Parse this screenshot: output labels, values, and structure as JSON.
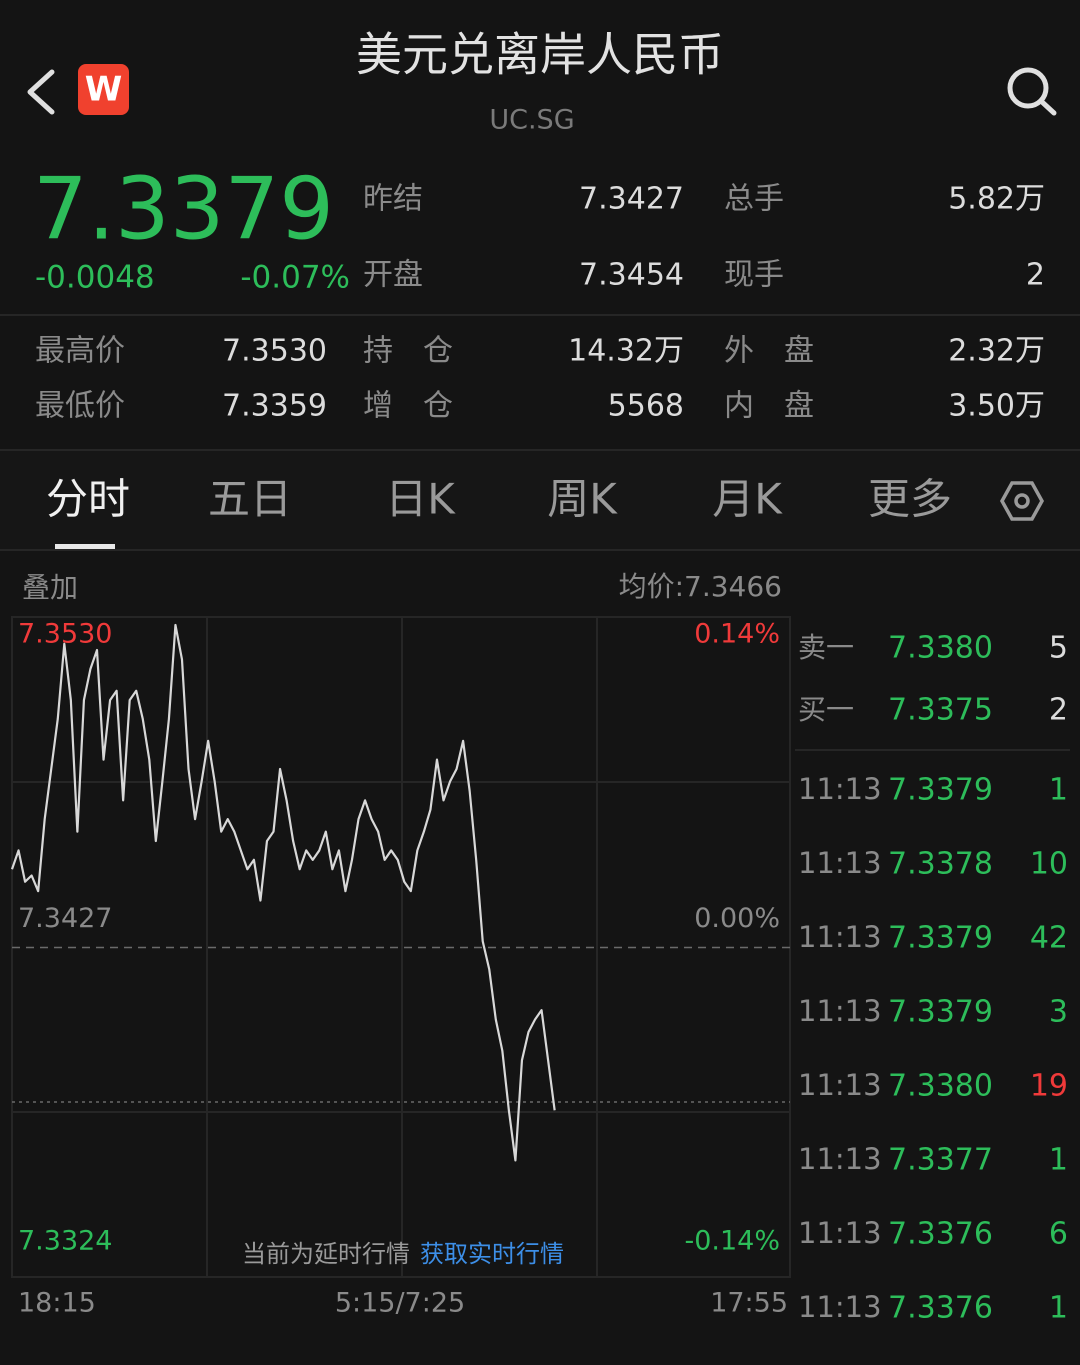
{
  "header": {
    "logo": "W",
    "title": "美元兑离岸人民币",
    "code": "UC.SG"
  },
  "quote": {
    "price": "7.3379",
    "change": "-0.0048",
    "change_pct": "-0.07%"
  },
  "stats": [
    {
      "label": "昨结",
      "value": "7.3427"
    },
    {
      "label": "总手",
      "value": "5.82万"
    },
    {
      "label": "开盘",
      "value": "7.3454"
    },
    {
      "label": "现手",
      "value": "2"
    },
    {
      "label": "最高价",
      "value": "7.3530"
    },
    {
      "label": "持　仓",
      "value": "14.32万"
    },
    {
      "label": "外　盘",
      "value": "2.32万"
    },
    {
      "label": "最低价",
      "value": "7.3359"
    },
    {
      "label": "增　仓",
      "value": "5568"
    },
    {
      "label": "内　盘",
      "value": "3.50万"
    }
  ],
  "tabs": [
    "分时",
    "五日",
    "日K",
    "周K",
    "月K",
    "更多"
  ],
  "overlay": "叠加",
  "average": "均价:7.3466",
  "notice": "当前为延时行情",
  "notice_link": "获取实时行情",
  "chart_data": {
    "type": "line",
    "color": "#d8d8d8",
    "values": [
      7.3452,
      7.3458,
      7.3448,
      7.345,
      7.3445,
      7.3468,
      7.3484,
      7.35,
      7.3524,
      7.3506,
      7.3464,
      7.3506,
      7.3516,
      7.3522,
      7.3487,
      7.3506,
      7.3509,
      7.3474,
      7.3506,
      7.3509,
      7.35,
      7.3487,
      7.3461,
      7.348,
      7.35,
      7.353,
      7.3519,
      7.3484,
      7.3468,
      7.348,
      7.3493,
      7.348,
      7.3464,
      7.3468,
      7.3464,
      7.3458,
      7.3452,
      7.3455,
      7.3442,
      7.3461,
      7.3464,
      7.3484,
      7.3474,
      7.3461,
      7.3452,
      7.3458,
      7.3455,
      7.3458,
      7.3464,
      7.3452,
      7.3458,
      7.3445,
      7.3455,
      7.3468,
      7.3474,
      7.3468,
      7.3464,
      7.3455,
      7.3458,
      7.3455,
      7.3448,
      7.3445,
      7.3458,
      7.3464,
      7.3471,
      7.3487,
      7.3474,
      7.348,
      7.3484,
      7.3493,
      7.3477,
      7.3455,
      7.3429,
      7.342,
      7.3404,
      7.3394,
      7.3375,
      7.3359,
      7.3391,
      7.34,
      7.3404,
      7.3407,
      7.3391,
      7.3375,
      null,
      null,
      null,
      null,
      null,
      null,
      null,
      null,
      null,
      null,
      null,
      null,
      null,
      null,
      null,
      null,
      null,
      null,
      null,
      null,
      null,
      null,
      null,
      null,
      null,
      null,
      null,
      null,
      null,
      null,
      null,
      null,
      null,
      null,
      null,
      null
    ],
    "ylim": [
      7.3324,
      7.353
    ],
    "yticks": [
      {
        "value": 7.353,
        "label": "7.3530"
      },
      {
        "value": 7.3427,
        "label": "7.3427"
      },
      {
        "value": 7.3324,
        "label": "7.3324"
      }
    ],
    "y2lim": [
      -0.14,
      0.14
    ],
    "y2ticks": [
      {
        "value": 0.14,
        "label": "0.14%"
      },
      {
        "value": 0,
        "label": "0.00%"
      },
      {
        "value": -0.14,
        "label": "-0.14%"
      }
    ],
    "xtick_labels": [
      "18:15",
      "5:15/7:25",
      "17:55"
    ],
    "up_color": "#f03a3a",
    "down_color": "#2dbd5a",
    "flat_color": "#8a8a8a"
  },
  "order_book": [
    {
      "label": "卖一",
      "price": "7.3380",
      "volume": "5"
    },
    {
      "label": "买一",
      "price": "7.3375",
      "volume": "2"
    }
  ],
  "trades": [
    {
      "time": "11:13",
      "price": "7.3379",
      "volume": "1",
      "volume_color": "#2dbd5a"
    },
    {
      "time": "11:13",
      "price": "7.3378",
      "volume": "10",
      "volume_color": "#2dbd5a"
    },
    {
      "time": "11:13",
      "price": "7.3379",
      "volume": "42",
      "volume_color": "#2dbd5a"
    },
    {
      "time": "11:13",
      "price": "7.3379",
      "volume": "3",
      "volume_color": "#2dbd5a"
    },
    {
      "time": "11:13",
      "price": "7.3380",
      "volume": "19",
      "volume_color": "#f03a3a"
    },
    {
      "time": "11:13",
      "price": "7.3377",
      "volume": "1",
      "volume_color": "#2dbd5a"
    },
    {
      "time": "11:13",
      "price": "7.3376",
      "volume": "6",
      "volume_color": "#2dbd5a"
    },
    {
      "time": "11:13",
      "price": "7.3376",
      "volume": "1",
      "volume_color": "#2dbd5a"
    }
  ]
}
